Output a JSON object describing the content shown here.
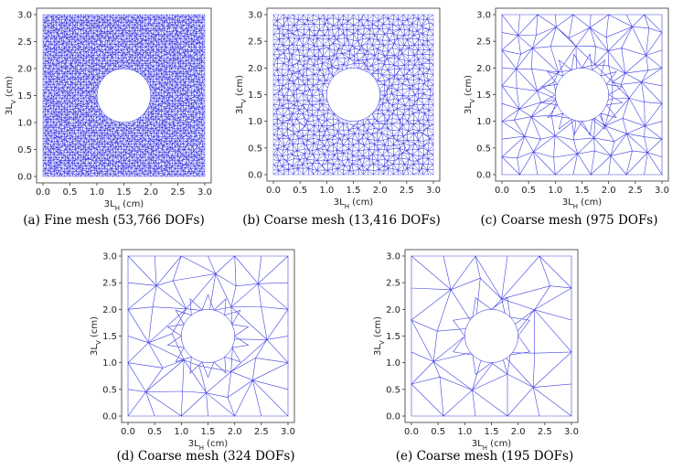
{
  "figure": {
    "panels": [
      {
        "id": "a",
        "caption": "(a) Fine mesh (53,766 DOFs)",
        "density": 60,
        "hole_rings": 0
      },
      {
        "id": "b",
        "caption": "(b) Coarse mesh (13,416 DOFs)",
        "density": 32,
        "hole_rings": 0
      },
      {
        "id": "c",
        "caption": "(c) Coarse mesh (975 DOFs)",
        "density": 9,
        "hole_rings": 16
      },
      {
        "id": "d",
        "caption": "(d) Coarse mesh (324 DOFs)",
        "density": 6,
        "hole_rings": 14
      },
      {
        "id": "e",
        "caption": "(e) Coarse mesh (195 DOFs)",
        "density": 5,
        "hole_rings": 8
      }
    ],
    "xlabel_main": "3L",
    "xlabel_sub": "H",
    "xlabel_unit": " (cm)",
    "ylabel_main": "3L",
    "ylabel_sub": "V",
    "ylabel_unit": " (cm)",
    "ticks": [
      "0.0",
      "0.5",
      "1.0",
      "1.5",
      "2.0",
      "2.5",
      "3.0"
    ],
    "domain": {
      "xlim": [
        0,
        3
      ],
      "ylim": [
        0,
        3
      ],
      "hole_center": [
        1.5,
        1.5
      ],
      "hole_radius": 0.5
    },
    "mesh_color": "#2222dd"
  }
}
